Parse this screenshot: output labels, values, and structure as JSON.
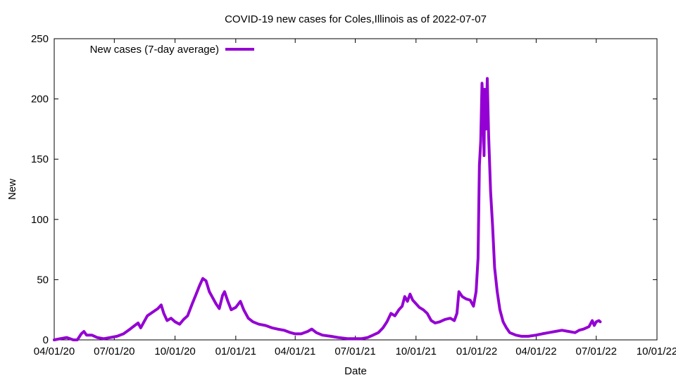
{
  "chart_data": {
    "type": "line",
    "title": "COVID-19 new cases for Coles,Illinois as of 2022-07-07",
    "xlabel": "Date",
    "ylabel": "New",
    "x_range": [
      "2020-04-01",
      "2022-10-01"
    ],
    "ylim": [
      0,
      250
    ],
    "grid": false,
    "legend_placement": "top-left",
    "x_ticks": [
      {
        "date": "2020-04-01",
        "label": "04/01/20"
      },
      {
        "date": "2020-07-01",
        "label": "07/01/20"
      },
      {
        "date": "2020-10-01",
        "label": "10/01/20"
      },
      {
        "date": "2021-01-01",
        "label": "01/01/21"
      },
      {
        "date": "2021-04-01",
        "label": "04/01/21"
      },
      {
        "date": "2021-07-01",
        "label": "07/01/21"
      },
      {
        "date": "2021-10-01",
        "label": "10/01/21"
      },
      {
        "date": "2022-01-01",
        "label": "01/01/22"
      },
      {
        "date": "2022-04-01",
        "label": "04/01/22"
      },
      {
        "date": "2022-07-01",
        "label": "07/01/22"
      },
      {
        "date": "2022-10-01",
        "label": "10/01/22"
      }
    ],
    "y_ticks": [
      {
        "value": 0,
        "label": "0"
      },
      {
        "value": 50,
        "label": "50"
      },
      {
        "value": 100,
        "label": "100"
      },
      {
        "value": 150,
        "label": "150"
      },
      {
        "value": 200,
        "label": "200"
      },
      {
        "value": 250,
        "label": "250"
      }
    ],
    "series": [
      {
        "name": "New cases (7-day average)",
        "color": "#9400d3",
        "points": [
          [
            "2020-04-01",
            0
          ],
          [
            "2020-04-10",
            1
          ],
          [
            "2020-04-20",
            2
          ],
          [
            "2020-04-30",
            0
          ],
          [
            "2020-05-06",
            0
          ],
          [
            "2020-05-12",
            5
          ],
          [
            "2020-05-16",
            7
          ],
          [
            "2020-05-20",
            4
          ],
          [
            "2020-05-28",
            4
          ],
          [
            "2020-06-05",
            2
          ],
          [
            "2020-06-15",
            1
          ],
          [
            "2020-06-25",
            2
          ],
          [
            "2020-07-05",
            3
          ],
          [
            "2020-07-15",
            5
          ],
          [
            "2020-07-25",
            9
          ],
          [
            "2020-08-01",
            12
          ],
          [
            "2020-08-06",
            14
          ],
          [
            "2020-08-10",
            10
          ],
          [
            "2020-08-15",
            15
          ],
          [
            "2020-08-20",
            20
          ],
          [
            "2020-08-28",
            23
          ],
          [
            "2020-09-05",
            26
          ],
          [
            "2020-09-10",
            29
          ],
          [
            "2020-09-14",
            22
          ],
          [
            "2020-09-19",
            16
          ],
          [
            "2020-09-25",
            18
          ],
          [
            "2020-10-01",
            15
          ],
          [
            "2020-10-08",
            13
          ],
          [
            "2020-10-14",
            17
          ],
          [
            "2020-10-20",
            20
          ],
          [
            "2020-10-27",
            30
          ],
          [
            "2020-11-02",
            38
          ],
          [
            "2020-11-07",
            45
          ],
          [
            "2020-11-12",
            51
          ],
          [
            "2020-11-17",
            49
          ],
          [
            "2020-11-22",
            40
          ],
          [
            "2020-11-27",
            35
          ],
          [
            "2020-12-02",
            30
          ],
          [
            "2020-12-07",
            26
          ],
          [
            "2020-12-12",
            37
          ],
          [
            "2020-12-15",
            40
          ],
          [
            "2020-12-20",
            32
          ],
          [
            "2020-12-25",
            25
          ],
          [
            "2021-01-01",
            27
          ],
          [
            "2021-01-08",
            32
          ],
          [
            "2021-01-13",
            25
          ],
          [
            "2021-01-20",
            18
          ],
          [
            "2021-01-27",
            15
          ],
          [
            "2021-02-05",
            13
          ],
          [
            "2021-02-15",
            12
          ],
          [
            "2021-02-25",
            10
          ],
          [
            "2021-03-05",
            9
          ],
          [
            "2021-03-15",
            8
          ],
          [
            "2021-03-25",
            6
          ],
          [
            "2021-04-01",
            5
          ],
          [
            "2021-04-10",
            5
          ],
          [
            "2021-04-20",
            7
          ],
          [
            "2021-04-26",
            9
          ],
          [
            "2021-05-03",
            6
          ],
          [
            "2021-05-12",
            4
          ],
          [
            "2021-05-25",
            3
          ],
          [
            "2021-06-05",
            2
          ],
          [
            "2021-06-20",
            1
          ],
          [
            "2021-07-01",
            1
          ],
          [
            "2021-07-10",
            1
          ],
          [
            "2021-07-20",
            2
          ],
          [
            "2021-07-28",
            4
          ],
          [
            "2021-08-05",
            6
          ],
          [
            "2021-08-12",
            10
          ],
          [
            "2021-08-18",
            15
          ],
          [
            "2021-08-24",
            22
          ],
          [
            "2021-08-30",
            20
          ],
          [
            "2021-09-05",
            25
          ],
          [
            "2021-09-10",
            28
          ],
          [
            "2021-09-14",
            36
          ],
          [
            "2021-09-18",
            32
          ],
          [
            "2021-09-22",
            38
          ],
          [
            "2021-09-26",
            33
          ],
          [
            "2021-10-01",
            30
          ],
          [
            "2021-10-06",
            27
          ],
          [
            "2021-10-12",
            25
          ],
          [
            "2021-10-18",
            22
          ],
          [
            "2021-10-24",
            16
          ],
          [
            "2021-10-30",
            14
          ],
          [
            "2021-11-06",
            15
          ],
          [
            "2021-11-14",
            17
          ],
          [
            "2021-11-22",
            18
          ],
          [
            "2021-11-28",
            16
          ],
          [
            "2021-12-02",
            22
          ],
          [
            "2021-12-05",
            40
          ],
          [
            "2021-12-10",
            36
          ],
          [
            "2021-12-16",
            34
          ],
          [
            "2021-12-22",
            33
          ],
          [
            "2021-12-27",
            28
          ],
          [
            "2021-12-31",
            40
          ],
          [
            "2022-01-03",
            68
          ],
          [
            "2022-01-05",
            145
          ],
          [
            "2022-01-07",
            165
          ],
          [
            "2022-01-09",
            213
          ],
          [
            "2022-01-11",
            190
          ],
          [
            "2022-01-12",
            153
          ],
          [
            "2022-01-13",
            208
          ],
          [
            "2022-01-15",
            175
          ],
          [
            "2022-01-17",
            217
          ],
          [
            "2022-01-19",
            170
          ],
          [
            "2022-01-22",
            123
          ],
          [
            "2022-01-25",
            95
          ],
          [
            "2022-01-28",
            60
          ],
          [
            "2022-02-01",
            40
          ],
          [
            "2022-02-05",
            25
          ],
          [
            "2022-02-10",
            15
          ],
          [
            "2022-02-15",
            10
          ],
          [
            "2022-02-20",
            6
          ],
          [
            "2022-03-01",
            4
          ],
          [
            "2022-03-10",
            3
          ],
          [
            "2022-03-20",
            3
          ],
          [
            "2022-04-01",
            4
          ],
          [
            "2022-04-10",
            5
          ],
          [
            "2022-04-20",
            6
          ],
          [
            "2022-04-30",
            7
          ],
          [
            "2022-05-10",
            8
          ],
          [
            "2022-05-20",
            7
          ],
          [
            "2022-05-30",
            6
          ],
          [
            "2022-06-05",
            8
          ],
          [
            "2022-06-12",
            9
          ],
          [
            "2022-06-20",
            11
          ],
          [
            "2022-06-25",
            16
          ],
          [
            "2022-06-28",
            12
          ],
          [
            "2022-07-01",
            15
          ],
          [
            "2022-07-05",
            16
          ],
          [
            "2022-07-07",
            15
          ]
        ]
      }
    ]
  }
}
